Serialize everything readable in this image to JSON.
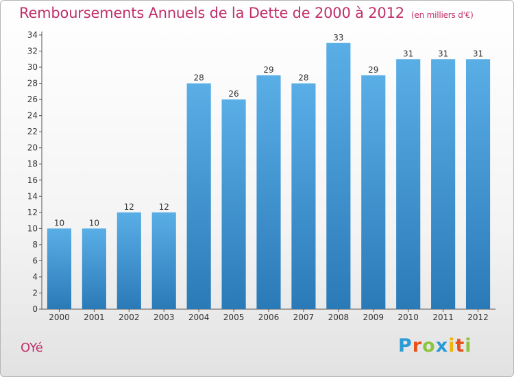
{
  "header": {
    "title": "Remboursements Annuels de la Dette de 2000 à 2012",
    "subtitle": "(en milliers d'€)"
  },
  "footer": {
    "commune": "OYé",
    "logo": {
      "letters": [
        "P",
        "r",
        "o",
        "x",
        "i",
        "t",
        "i"
      ],
      "colors": [
        "#2a9bd6",
        "#e8501a",
        "#8cc63f",
        "#2a9bd6",
        "#f0b40a",
        "#e8501a",
        "#8cc63f"
      ]
    }
  },
  "chart_data": {
    "type": "bar",
    "title": "Remboursements Annuels de la Dette de 2000 à 2012",
    "subtitle": "(en milliers d'€)",
    "categories": [
      "2000",
      "2001",
      "2002",
      "2003",
      "2004",
      "2005",
      "2006",
      "2007",
      "2008",
      "2009",
      "2010",
      "2011",
      "2012"
    ],
    "values": [
      10,
      10,
      12,
      12,
      28,
      26,
      29,
      28,
      33,
      29,
      31,
      31,
      31
    ],
    "xlabel": "",
    "ylabel": "",
    "ylim": [
      0,
      34
    ],
    "yticks": [
      0,
      2,
      4,
      6,
      8,
      10,
      12,
      14,
      16,
      18,
      20,
      22,
      24,
      26,
      28,
      30,
      32,
      34
    ],
    "grid": false,
    "legend": "none",
    "bar_color_top": "#5aaee6",
    "bar_color_bottom": "#2a7ab8"
  }
}
